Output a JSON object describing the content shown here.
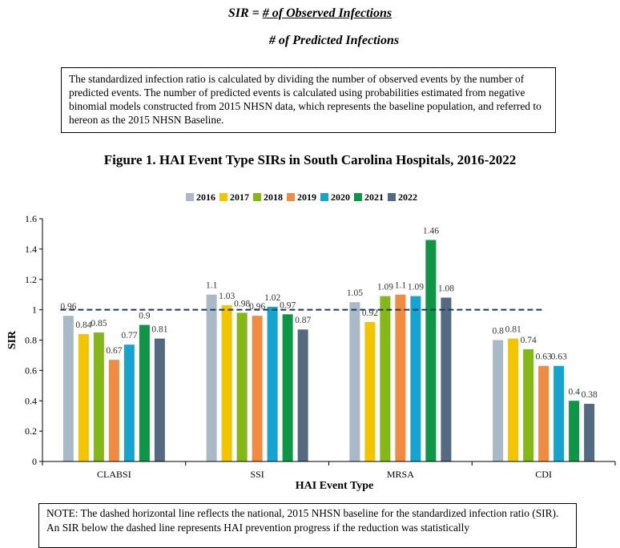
{
  "formula": {
    "lhs": "SIR = ",
    "numerator": "# of Observed Infections",
    "denominator": "# of Predicted Infections"
  },
  "definition_text": "The standardized infection ratio is calculated by dividing the number of observed events by the number of predicted events. The number of predicted events is calculated using probabilities estimated from negative binomial models constructed from 2015 NHSN data, which represents the baseline population, and referred to hereon as the 2015 NHSN Baseline.",
  "figure_title": "Figure 1. HAI Event Type SIRs in South Carolina Hospitals, 2016-2022",
  "note_text": "NOTE: The dashed horizontal line reflects the national, 2015 NHSN baseline for the standardized infection ratio (SIR). An SIR below the dashed line represents HAI prevention progress if the reduction was statistically",
  "chart_data": {
    "type": "bar",
    "xlabel": "HAI Event Type",
    "ylabel": "SIR",
    "ylim": [
      0,
      1.6
    ],
    "yticks": [
      0,
      0.2,
      0.4,
      0.6,
      0.8,
      1,
      1.2,
      1.4,
      1.6
    ],
    "ytick_labels": [
      "0",
      "0.2",
      "0.4",
      "0.6",
      "0.8",
      "1",
      "1.2",
      "1.4",
      "1.6"
    ],
    "grid": false,
    "legend_position": "top-center",
    "baseline": 1,
    "categories": [
      "CLABSI",
      "SSI",
      "MRSA",
      "CDI"
    ],
    "series": [
      {
        "name": "2016",
        "color": "#a9b9c8",
        "values": [
          0.96,
          1.1,
          1.05,
          0.8
        ],
        "labels": [
          "0.96",
          "1.1",
          "1.05",
          "0.8"
        ]
      },
      {
        "name": "2017",
        "color": "#f2c500",
        "values": [
          0.84,
          1.03,
          0.92,
          0.81
        ],
        "labels": [
          "0.84",
          "1.03",
          "0.92",
          "0.81"
        ]
      },
      {
        "name": "2018",
        "color": "#84b818",
        "values": [
          0.85,
          0.98,
          1.09,
          0.74
        ],
        "labels": [
          "0.85",
          "0.98",
          "1.09",
          "0.74"
        ]
      },
      {
        "name": "2019",
        "color": "#f08c41",
        "values": [
          0.67,
          0.96,
          1.1,
          0.63
        ],
        "labels": [
          "0.67",
          "0.96",
          "1.1",
          "0.63"
        ]
      },
      {
        "name": "2020",
        "color": "#14a4cf",
        "values": [
          0.77,
          1.02,
          1.09,
          0.63
        ],
        "labels": [
          "0.77",
          "1.02",
          "1.09",
          "0.63"
        ]
      },
      {
        "name": "2021",
        "color": "#0e9646",
        "values": [
          0.9,
          0.97,
          1.46,
          0.4
        ],
        "labels": [
          "0.9",
          "0.97",
          "1.46",
          "0.4"
        ]
      },
      {
        "name": "2022",
        "color": "#546a80",
        "values": [
          0.81,
          0.87,
          1.08,
          0.38
        ],
        "labels": [
          "0.81",
          "0.87",
          "1.08",
          "0.38"
        ]
      }
    ]
  }
}
